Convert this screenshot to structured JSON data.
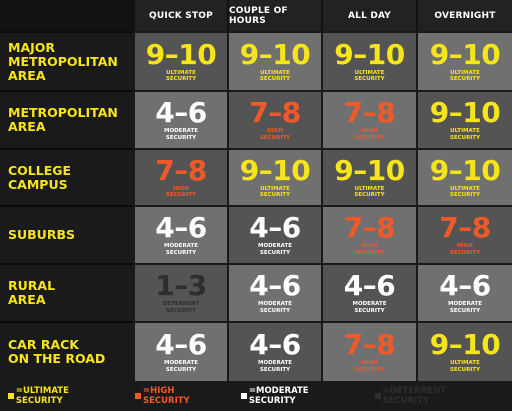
{
  "colors": {
    "ultimate": "#f6e51b",
    "high": "#f05a28",
    "moderate": "#ffffff",
    "deterrent": "#2e2e2e"
  },
  "columns": [
    "QUICK STOP",
    "COUPLE OF HOURS",
    "ALL DAY",
    "OVERNIGHT"
  ],
  "rows": [
    {
      "label": "MAJOR\nMETROPOLITAN\nAREA",
      "cells": [
        {
          "score": "9–10",
          "tier": "ULTIMATE\nSECURITY",
          "level": "ultimate"
        },
        {
          "score": "9–10",
          "tier": "ULTIMATE\nSECURITY",
          "level": "ultimate"
        },
        {
          "score": "9–10",
          "tier": "ULTIMATE\nSECURITY",
          "level": "ultimate"
        },
        {
          "score": "9–10",
          "tier": "ULTIMATE\nSECURITY",
          "level": "ultimate"
        }
      ]
    },
    {
      "label": "METROPOLITAN\nAREA",
      "cells": [
        {
          "score": "4–6",
          "tier": "MODERATE\nSECURITY",
          "level": "moderate"
        },
        {
          "score": "7–8",
          "tier": "HIGH\nSECURITY",
          "level": "high"
        },
        {
          "score": "7–8",
          "tier": "HIGH\nSECURITY",
          "level": "high"
        },
        {
          "score": "9–10",
          "tier": "ULTIMATE\nSECURITY",
          "level": "ultimate"
        }
      ]
    },
    {
      "label": "COLLEGE\nCAMPUS",
      "cells": [
        {
          "score": "7–8",
          "tier": "HIGH\nSECURITY",
          "level": "high"
        },
        {
          "score": "9–10",
          "tier": "ULTIMATE\nSECURITY",
          "level": "ultimate"
        },
        {
          "score": "9–10",
          "tier": "ULTIMATE\nSECURITY",
          "level": "ultimate"
        },
        {
          "score": "9–10",
          "tier": "ULTIMATE\nSECURITY",
          "level": "ultimate"
        }
      ]
    },
    {
      "label": "SUBURBS",
      "cells": [
        {
          "score": "4–6",
          "tier": "MODERATE\nSECURITY",
          "level": "moderate"
        },
        {
          "score": "4–6",
          "tier": "MODERATE\nSECURITY",
          "level": "moderate"
        },
        {
          "score": "7–8",
          "tier": "HIGH\nSECURITY",
          "level": "high"
        },
        {
          "score": "7–8",
          "tier": "HIGH\nSECURITY",
          "level": "high"
        }
      ]
    },
    {
      "label": "RURAL\nAREA",
      "cells": [
        {
          "score": "1–3",
          "tier": "DETERRENT\nSECURITY",
          "level": "deterrent"
        },
        {
          "score": "4–6",
          "tier": "MODERATE\nSECURITY",
          "level": "moderate"
        },
        {
          "score": "4–6",
          "tier": "MODERATE\nSECURITY",
          "level": "moderate"
        },
        {
          "score": "4–6",
          "tier": "MODERATE\nSECURITY",
          "level": "moderate"
        }
      ]
    },
    {
      "label": "CAR RACK\nON THE ROAD",
      "cells": [
        {
          "score": "4–6",
          "tier": "MODERATE\nSECURITY",
          "level": "moderate"
        },
        {
          "score": "4–6",
          "tier": "MODERATE\nSECURITY",
          "level": "moderate"
        },
        {
          "score": "7–8",
          "tier": "HIGH\nSECURITY",
          "level": "high"
        },
        {
          "score": "9–10",
          "tier": "ULTIMATE\nSECURITY",
          "level": "ultimate"
        }
      ]
    }
  ],
  "legend": [
    {
      "label": "=ULTIMATE SECURITY",
      "level": "ultimate"
    },
    {
      "label": "=HIGH SECURITY",
      "level": "high"
    },
    {
      "label": "=MODERATE SECURITY",
      "level": "moderate"
    },
    {
      "label": "=DETERRENT SECURITY",
      "level": "deterrent"
    }
  ]
}
